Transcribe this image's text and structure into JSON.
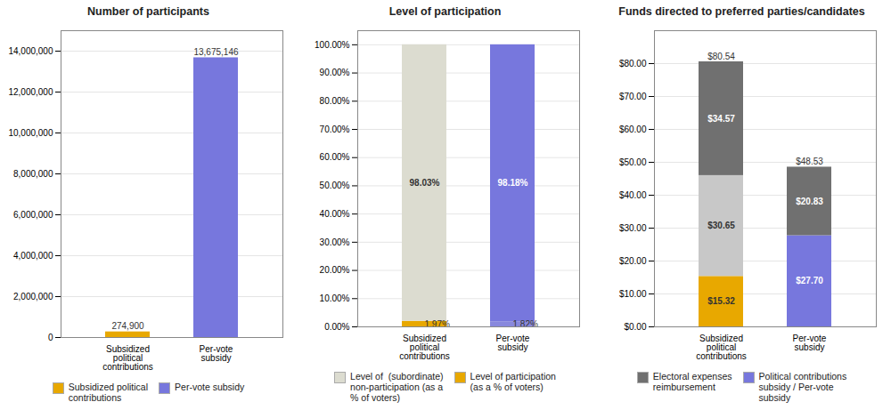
{
  "chart_data": [
    {
      "type": "bar",
      "title": "Number of participants",
      "categories": [
        "Subsidized\npolitical\ncontributions",
        "Per-vote\nsubsidy"
      ],
      "series": [
        {
          "name": "Subsidized political\ncontributions",
          "color": "#E8A800",
          "values": [
            274900,
            null
          ],
          "value_labels": [
            "274,900",
            null
          ]
        },
        {
          "name": "Per-vote subsidy",
          "color": "#7777DD",
          "values": [
            null,
            13675146
          ],
          "value_labels": [
            null,
            "13,675,146"
          ]
        }
      ],
      "ylim": [
        0,
        15000000
      ],
      "yticks": [
        0,
        {
          "value": 2000000,
          "label": "2,000,000"
        },
        {
          "value": 4000000,
          "label": "4,000,000"
        },
        {
          "value": 6000000,
          "label": "6,000,000"
        },
        {
          "value": 8000000,
          "label": "8,000,000"
        },
        {
          "value": 10000000,
          "label": "10,000,000"
        },
        {
          "value": 12000000,
          "label": "12,000,000"
        },
        {
          "value": 14000000,
          "label": "14,000,000"
        }
      ],
      "grid": true,
      "legend": "bottom",
      "stacked": false,
      "data_labels": true
    },
    {
      "type": "bar",
      "title": "Level of participation",
      "categories": [
        "Subsidized\npolitical\ncontributions",
        "Per-vote\nsubsidy"
      ],
      "series": [
        {
          "name": "Level of participation\n(as a % of voters)",
          "color": "#E8A800",
          "colors": [
            "#E8A800",
            "#8888DD"
          ],
          "values": [
            1.97,
            1.82
          ],
          "value_labels": [
            "1.97%",
            "1.82%"
          ]
        },
        {
          "name": "Level of  (subordinate)\nnon-participation (as a\n% of voters)",
          "color": "#DCDCD0",
          "colors": [
            "#DCDCD0",
            "#7777DD"
          ],
          "values": [
            98.03,
            98.18
          ],
          "value_labels": [
            "98.03%",
            "98.18%"
          ]
        }
      ],
      "ylim": [
        0,
        105
      ],
      "yticks": [
        {
          "value": 0,
          "label": "0.00%"
        },
        {
          "value": 10,
          "label": "10.00%"
        },
        {
          "value": 20,
          "label": "20.00%"
        },
        {
          "value": 30,
          "label": "30.00%"
        },
        {
          "value": 40,
          "label": "40.00%"
        },
        {
          "value": 50,
          "label": "50.00%"
        },
        {
          "value": 60,
          "label": "60.00%"
        },
        {
          "value": 70,
          "label": "70.00%"
        },
        {
          "value": 80,
          "label": "80.00%"
        },
        {
          "value": 90,
          "label": "90.00%"
        },
        {
          "value": 100,
          "label": "100.00%"
        }
      ],
      "grid": true,
      "legend": "bottom",
      "stacked": true,
      "data_labels": true
    },
    {
      "type": "bar",
      "title": "Funds directed to preferred parties/candidates",
      "categories": [
        "Subsidized\npolitical\ncontributions",
        "Per-vote\nsubsidy"
      ],
      "series": [
        {
          "name": "Political contributions\nsubsidy / Per-vote\nsubsidy",
          "color": "#7777DD",
          "colors": [
            "#E8A800",
            "#7777DD"
          ],
          "values": [
            15.32,
            27.7
          ],
          "value_labels": [
            "$15.32",
            "$27.70"
          ]
        },
        {
          "color": "#C8C8C8",
          "values": [
            30.65,
            null
          ],
          "value_labels": [
            "$30.65",
            null
          ]
        },
        {
          "name": "Electoral expenses\nreimbursement",
          "color": "#707070",
          "values": [
            34.57,
            20.83
          ],
          "value_labels": [
            "$34.57",
            "$20.83"
          ]
        }
      ],
      "totals": [
        80.54,
        48.53
      ],
      "total_labels": [
        "$80.54",
        "$48.53"
      ],
      "ylim": [
        0,
        90
      ],
      "yticks": [
        {
          "value": 0,
          "label": "$0.00"
        },
        {
          "value": 10,
          "label": "$10.00"
        },
        {
          "value": 20,
          "label": "$20.00"
        },
        {
          "value": 30,
          "label": "$30.00"
        },
        {
          "value": 40,
          "label": "$40.00"
        },
        {
          "value": 50,
          "label": "$50.00"
        },
        {
          "value": 60,
          "label": "$60.00"
        },
        {
          "value": 70,
          "label": "$70.00"
        },
        {
          "value": 80,
          "label": "$80.00"
        }
      ],
      "grid": true,
      "legend": "bottom",
      "stacked": true,
      "data_labels": true
    }
  ]
}
